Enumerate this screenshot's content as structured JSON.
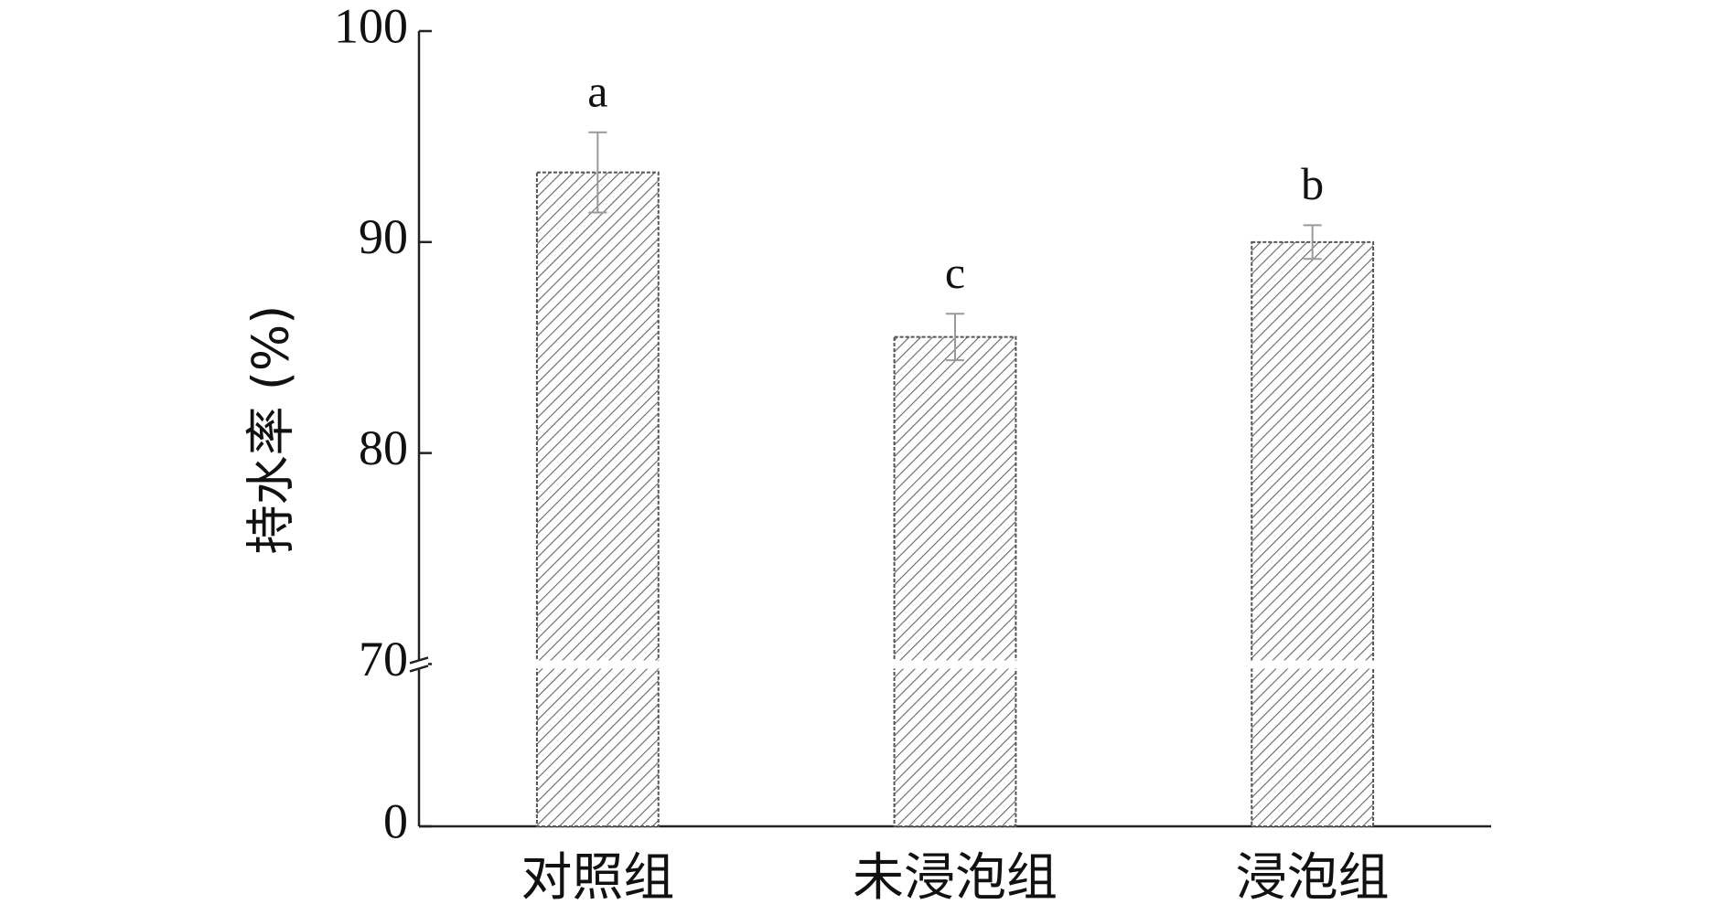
{
  "chart_data": {
    "type": "bar",
    "y_label": "持水率 (%)",
    "categories": [
      "对照组",
      "未浸泡组",
      "浸泡组"
    ],
    "values": [
      93.3,
      85.5,
      90.0
    ],
    "errors": [
      1.9,
      1.1,
      0.8
    ],
    "significance": [
      "a",
      "c",
      "b"
    ],
    "color": "#555555",
    "error_color": "#999999",
    "ylim": [
      0,
      100
    ],
    "yticks": [
      0,
      70,
      80,
      90,
      100
    ],
    "y_break": 70,
    "grid": false
  }
}
